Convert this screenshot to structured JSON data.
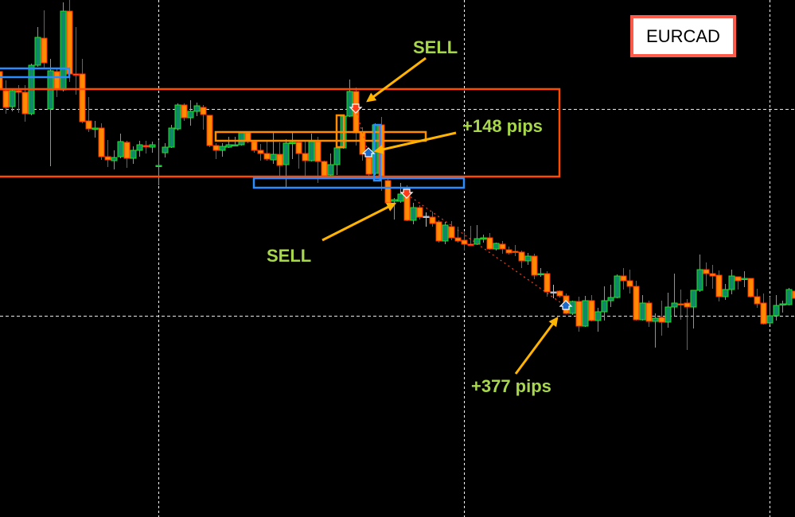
{
  "symbol": "EURCAD",
  "colors": {
    "background": "#000000",
    "bull_body": "#12876b",
    "bull_border": "#22e022",
    "bear_body": "#ff8c00",
    "bear_border": "#ff2a00",
    "doji_neutral": "#b8c0cc",
    "range_box": "#ff4a00",
    "zone_orange": "#ff8c00",
    "zone_blue": "#2a8cff",
    "annotation_arrow": "#ffb400",
    "annotation_text": "#a8d84a",
    "level_line": "#ffff33",
    "grid_line": "#ffffff",
    "trade_line": "#ff3b1a"
  },
  "annotations": {
    "sell_1": "SELL",
    "profit_1": "+148 pips",
    "sell_2": "SELL",
    "profit_2": "+377 pips"
  },
  "chart_data": {
    "type": "candlestick",
    "title": "",
    "xlabel": "",
    "ylabel": "",
    "grid": true,
    "price_units": "relative",
    "ohlc": [
      [
        560,
        564,
        534,
        537
      ],
      [
        536,
        549,
        507,
        515
      ],
      [
        516,
        538,
        510,
        536
      ],
      [
        536,
        543,
        508,
        534
      ],
      [
        534,
        543,
        497,
        507
      ],
      [
        507,
        570,
        505,
        568
      ],
      [
        568,
        616,
        566,
        603
      ],
      [
        602,
        637,
        563,
        571
      ],
      [
        513,
        576,
        441,
        561
      ],
      [
        560,
        565,
        528,
        537
      ],
      [
        537,
        647,
        535,
        636
      ],
      [
        636,
        650,
        547,
        557
      ],
      [
        557,
        616,
        531,
        556
      ],
      [
        557,
        576,
        495,
        497
      ],
      [
        498,
        528,
        484,
        488
      ],
      [
        488,
        498,
        477,
        489
      ],
      [
        489,
        495,
        449,
        453
      ],
      [
        453,
        474,
        440,
        449
      ],
      [
        448,
        461,
        437,
        452
      ],
      [
        453,
        482,
        451,
        472
      ],
      [
        471,
        473,
        439,
        451
      ],
      [
        451,
        466,
        444,
        461
      ],
      [
        461,
        473,
        453,
        468
      ],
      [
        467,
        473,
        457,
        466
      ],
      [
        465,
        472,
        458,
        468
      ],
      [
        441,
        474,
        417,
        442
      ],
      [
        458,
        470,
        452,
        465
      ],
      [
        465,
        493,
        464,
        489
      ],
      [
        488,
        520,
        486,
        518
      ],
      [
        518,
        520,
        498,
        502
      ],
      [
        502,
        524,
        492,
        510
      ],
      [
        510,
        521,
        504,
        517
      ],
      [
        515,
        518,
        487,
        506
      ],
      [
        505,
        505,
        465,
        467
      ],
      [
        467,
        470,
        450,
        461
      ],
      [
        461,
        470,
        453,
        466
      ],
      [
        465,
        478,
        464,
        468
      ],
      [
        467,
        478,
        466,
        468
      ],
      [
        468,
        485,
        467,
        483
      ],
      [
        483,
        484,
        470,
        472
      ],
      [
        472,
        474,
        458,
        461
      ],
      [
        461,
        469,
        448,
        457
      ],
      [
        457,
        472,
        448,
        450
      ],
      [
        449,
        483,
        444,
        456
      ],
      [
        456,
        471,
        427,
        442
      ],
      [
        443,
        475,
        415,
        470
      ],
      [
        470,
        484,
        450,
        471
      ],
      [
        471,
        473,
        438,
        457
      ],
      [
        457,
        472,
        428,
        448
      ],
      [
        448,
        482,
        447,
        472
      ],
      [
        472,
        478,
        420,
        447
      ],
      [
        447,
        448,
        426,
        429
      ],
      [
        430,
        457,
        426,
        443
      ],
      [
        443,
        465,
        430,
        464
      ],
      [
        464,
        505,
        463,
        504
      ],
      [
        504,
        550,
        503,
        535
      ],
      [
        535,
        540,
        467,
        483
      ],
      [
        484,
        490,
        448,
        456
      ],
      [
        452,
        455,
        428,
        431
      ],
      [
        432,
        495,
        430,
        493
      ],
      [
        493,
        503,
        410,
        425
      ],
      [
        423,
        425,
        393,
        395
      ],
      [
        397,
        401,
        374,
        399
      ],
      [
        397,
        420,
        395,
        406
      ],
      [
        409,
        417,
        372,
        373
      ],
      [
        373,
        395,
        368,
        389
      ],
      [
        389,
        392,
        374,
        377
      ],
      [
        378,
        383,
        365,
        378
      ],
      [
        377,
        384,
        365,
        369
      ],
      [
        371,
        373,
        345,
        347
      ],
      [
        347,
        371,
        343,
        367
      ],
      [
        365,
        372,
        348,
        351
      ],
      [
        351,
        365,
        345,
        347
      ],
      [
        348,
        358,
        335,
        343
      ],
      [
        343,
        366,
        341,
        342
      ],
      [
        343,
        367,
        342,
        350
      ],
      [
        350,
        355,
        345,
        351
      ],
      [
        351,
        357,
        336,
        337
      ],
      [
        337,
        345,
        335,
        344
      ],
      [
        343,
        347,
        331,
        337
      ],
      [
        336,
        340,
        330,
        332
      ],
      [
        334,
        342,
        328,
        333
      ],
      [
        333,
        335,
        313,
        322
      ],
      [
        322,
        332,
        317,
        328
      ],
      [
        328,
        331,
        299,
        304
      ],
      [
        305,
        313,
        302,
        306
      ],
      [
        306,
        309,
        277,
        283
      ],
      [
        283,
        292,
        275,
        283
      ],
      [
        284,
        285,
        276,
        278
      ],
      [
        278,
        281,
        255,
        256
      ],
      [
        256,
        272,
        254,
        271
      ],
      [
        271,
        277,
        233,
        240
      ],
      [
        240,
        278,
        239,
        272
      ],
      [
        272,
        279,
        246,
        247
      ],
      [
        247,
        263,
        233,
        258
      ],
      [
        258,
        290,
        247,
        272
      ],
      [
        272,
        292,
        264,
        276
      ],
      [
        276,
        305,
        275,
        303
      ],
      [
        303,
        313,
        286,
        297
      ],
      [
        297,
        311,
        281,
        290
      ],
      [
        290,
        297,
        247,
        248
      ],
      [
        248,
        279,
        247,
        269
      ],
      [
        269,
        272,
        239,
        246
      ],
      [
        246,
        256,
        213,
        250
      ],
      [
        251,
        272,
        228,
        245
      ],
      [
        245,
        282,
        238,
        264
      ],
      [
        264,
        306,
        253,
        269
      ],
      [
        268,
        286,
        248,
        267
      ],
      [
        269,
        274,
        210,
        264
      ],
      [
        264,
        285,
        237,
        285
      ],
      [
        285,
        330,
        283,
        311
      ],
      [
        311,
        320,
        290,
        306
      ],
      [
        306,
        317,
        287,
        303
      ],
      [
        304,
        310,
        271,
        277
      ],
      [
        277,
        293,
        273,
        286
      ],
      [
        286,
        311,
        280,
        303
      ],
      [
        302,
        302,
        286,
        297
      ],
      [
        299,
        309,
        289,
        300
      ],
      [
        300,
        300,
        276,
        277
      ],
      [
        277,
        287,
        263,
        268
      ],
      [
        269,
        281,
        242,
        243
      ],
      [
        244,
        277,
        242,
        253
      ],
      [
        253,
        279,
        247,
        266
      ],
      [
        267,
        272,
        257,
        268
      ],
      [
        267,
        288,
        266,
        286
      ],
      [
        284,
        288,
        270,
        275
      ]
    ]
  }
}
